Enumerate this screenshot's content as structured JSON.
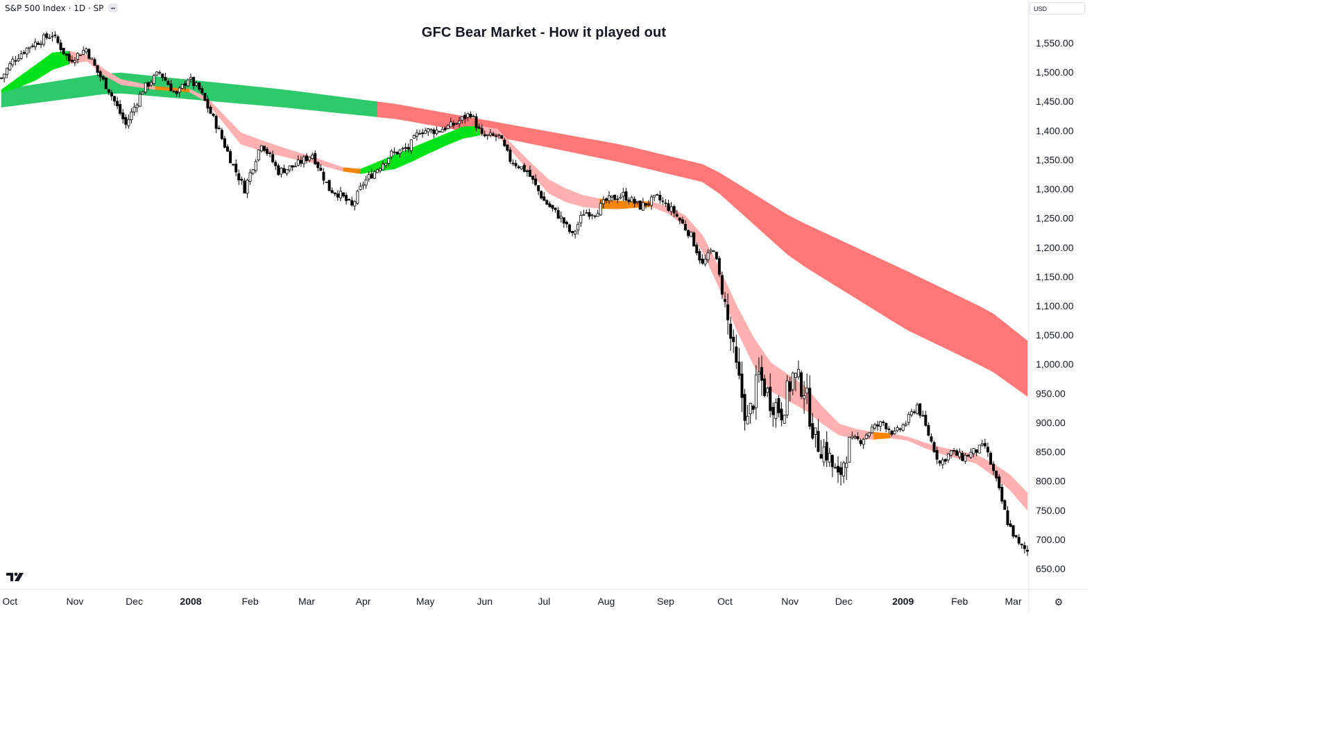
{
  "header": {
    "symbol": "S&P 500 Index · 1D · SP",
    "currency": "USD"
  },
  "chart_data": {
    "type": "line",
    "title": "GFC Bear Market - How it played out",
    "xlabel": "",
    "ylabel": "",
    "ylim": [
      632,
      1585
    ],
    "y_ticks": [
      "1,550.00",
      "1,500.00",
      "1,450.00",
      "1,400.00",
      "1,350.00",
      "1,300.00",
      "1,250.00",
      "1,200.00",
      "1,150.00",
      "1,100.00",
      "1,050.00",
      "1,000.00",
      "950.00",
      "900.00",
      "850.00",
      "800.00",
      "750.00",
      "700.00",
      "650.00"
    ],
    "y_tick_values": [
      1550,
      1500,
      1450,
      1400,
      1350,
      1300,
      1250,
      1200,
      1150,
      1100,
      1050,
      1000,
      950,
      900,
      850,
      800,
      750,
      700,
      650
    ],
    "x_ticks": [
      {
        "label": "Oct",
        "idx": 3,
        "bold": false
      },
      {
        "label": "Nov",
        "idx": 26,
        "bold": false
      },
      {
        "label": "Dec",
        "idx": 47,
        "bold": false
      },
      {
        "label": "2008",
        "idx": 67,
        "bold": true
      },
      {
        "label": "Feb",
        "idx": 88,
        "bold": false
      },
      {
        "label": "Mar",
        "idx": 108,
        "bold": false
      },
      {
        "label": "Apr",
        "idx": 128,
        "bold": false
      },
      {
        "label": "May",
        "idx": 150,
        "bold": false
      },
      {
        "label": "Jun",
        "idx": 171,
        "bold": false
      },
      {
        "label": "Jul",
        "idx": 192,
        "bold": false
      },
      {
        "label": "Aug",
        "idx": 214,
        "bold": false
      },
      {
        "label": "Sep",
        "idx": 235,
        "bold": false
      },
      {
        "label": "Oct",
        "idx": 256,
        "bold": false
      },
      {
        "label": "Nov",
        "idx": 279,
        "bold": false
      },
      {
        "label": "Dec",
        "idx": 298,
        "bold": false
      },
      {
        "label": "2009",
        "idx": 319,
        "bold": true
      },
      {
        "label": "Feb",
        "idx": 339,
        "bold": false
      },
      {
        "label": "Mar",
        "idx": 358,
        "bold": false
      }
    ],
    "series": [
      {
        "kind": "candles",
        "close_points": [
          [
            0,
            1490
          ],
          [
            4,
            1520
          ],
          [
            10,
            1545
          ],
          [
            18,
            1565
          ],
          [
            24,
            1520
          ],
          [
            30,
            1540
          ],
          [
            34,
            1500
          ],
          [
            38,
            1470
          ],
          [
            44,
            1410
          ],
          [
            50,
            1470
          ],
          [
            56,
            1500
          ],
          [
            62,
            1460
          ],
          [
            66,
            1490
          ],
          [
            70,
            1470
          ],
          [
            76,
            1410
          ],
          [
            82,
            1340
          ],
          [
            86,
            1300
          ],
          [
            92,
            1380
          ],
          [
            98,
            1330
          ],
          [
            104,
            1340
          ],
          [
            110,
            1360
          ],
          [
            116,
            1300
          ],
          [
            120,
            1290
          ],
          [
            124,
            1270
          ],
          [
            128,
            1310
          ],
          [
            132,
            1330
          ],
          [
            138,
            1360
          ],
          [
            144,
            1370
          ],
          [
            148,
            1400
          ],
          [
            154,
            1400
          ],
          [
            160,
            1410
          ],
          [
            166,
            1430
          ],
          [
            170,
            1390
          ],
          [
            176,
            1390
          ],
          [
            180,
            1350
          ],
          [
            186,
            1330
          ],
          [
            192,
            1280
          ],
          [
            198,
            1250
          ],
          [
            202,
            1220
          ],
          [
            206,
            1260
          ],
          [
            210,
            1260
          ],
          [
            214,
            1280
          ],
          [
            220,
            1290
          ],
          [
            226,
            1270
          ],
          [
            232,
            1285
          ],
          [
            238,
            1260
          ],
          [
            244,
            1220
          ],
          [
            248,
            1170
          ],
          [
            252,
            1200
          ],
          [
            256,
            1100
          ],
          [
            260,
            990
          ],
          [
            264,
            900
          ],
          [
            268,
            980
          ],
          [
            272,
            940
          ],
          [
            276,
            920
          ],
          [
            280,
            980
          ],
          [
            284,
            960
          ],
          [
            288,
            870
          ],
          [
            292,
            850
          ],
          [
            296,
            800
          ],
          [
            300,
            870
          ],
          [
            304,
            870
          ],
          [
            308,
            890
          ],
          [
            312,
            900
          ],
          [
            316,
            880
          ],
          [
            320,
            900
          ],
          [
            324,
            930
          ],
          [
            328,
            880
          ],
          [
            332,
            830
          ],
          [
            336,
            850
          ],
          [
            340,
            840
          ],
          [
            344,
            850
          ],
          [
            348,
            860
          ],
          [
            352,
            800
          ],
          [
            356,
            730
          ],
          [
            360,
            690
          ],
          [
            363,
            680
          ]
        ]
      },
      {
        "kind": "ribbon",
        "name": "",
        "colors": [
          "#2ec96b",
          "#ff7777"
        ],
        "upper": [
          [
            0,
            1470
          ],
          [
            40,
            1500
          ],
          [
            100,
            1470
          ],
          [
            140,
            1445
          ],
          [
            180,
            1410
          ],
          [
            220,
            1375
          ],
          [
            250,
            1340
          ],
          [
            280,
            1250
          ],
          [
            320,
            1160
          ],
          [
            350,
            1090
          ],
          [
            363,
            1040
          ]
        ],
        "lower": [
          [
            0,
            1440
          ],
          [
            40,
            1465
          ],
          [
            100,
            1440
          ],
          [
            140,
            1420
          ],
          [
            180,
            1385
          ],
          [
            220,
            1345
          ],
          [
            250,
            1310
          ],
          [
            280,
            1180
          ],
          [
            320,
            1060
          ],
          [
            350,
            990
          ],
          [
            363,
            945
          ]
        ]
      },
      {
        "kind": "ribbon",
        "name": "",
        "colors": [
          "#00e31a",
          "#f58400",
          "#ffb0b0"
        ],
        "upper": [
          [
            0,
            1470
          ],
          [
            10,
            1505
          ],
          [
            20,
            1540
          ],
          [
            30,
            1530
          ],
          [
            40,
            1490
          ],
          [
            55,
            1475
          ],
          [
            70,
            1470
          ],
          [
            85,
            1395
          ],
          [
            100,
            1370
          ],
          [
            110,
            1355
          ],
          [
            125,
            1330
          ],
          [
            140,
            1360
          ],
          [
            155,
            1390
          ],
          [
            165,
            1410
          ],
          [
            175,
            1405
          ],
          [
            185,
            1355
          ],
          [
            195,
            1310
          ],
          [
            205,
            1290
          ],
          [
            215,
            1280
          ],
          [
            230,
            1278
          ],
          [
            240,
            1265
          ],
          [
            250,
            1210
          ],
          [
            258,
            1120
          ],
          [
            270,
            1010
          ],
          [
            285,
            960
          ],
          [
            295,
            900
          ],
          [
            305,
            885
          ],
          [
            318,
            880
          ],
          [
            330,
            860
          ],
          [
            345,
            845
          ],
          [
            355,
            820
          ],
          [
            363,
            780
          ]
        ],
        "lower": [
          [
            0,
            1465
          ],
          [
            10,
            1480
          ],
          [
            20,
            1510
          ],
          [
            30,
            1520
          ],
          [
            40,
            1480
          ],
          [
            55,
            1470
          ],
          [
            70,
            1465
          ],
          [
            85,
            1375
          ],
          [
            100,
            1355
          ],
          [
            110,
            1345
          ],
          [
            125,
            1325
          ],
          [
            140,
            1335
          ],
          [
            155,
            1370
          ],
          [
            165,
            1390
          ],
          [
            175,
            1395
          ],
          [
            185,
            1340
          ],
          [
            195,
            1285
          ],
          [
            205,
            1270
          ],
          [
            215,
            1265
          ],
          [
            230,
            1270
          ],
          [
            240,
            1250
          ],
          [
            250,
            1180
          ],
          [
            258,
            1080
          ],
          [
            270,
            960
          ],
          [
            285,
            920
          ],
          [
            295,
            880
          ],
          [
            305,
            870
          ],
          [
            318,
            875
          ],
          [
            330,
            850
          ],
          [
            345,
            830
          ],
          [
            355,
            795
          ],
          [
            363,
            750
          ]
        ]
      }
    ]
  }
}
